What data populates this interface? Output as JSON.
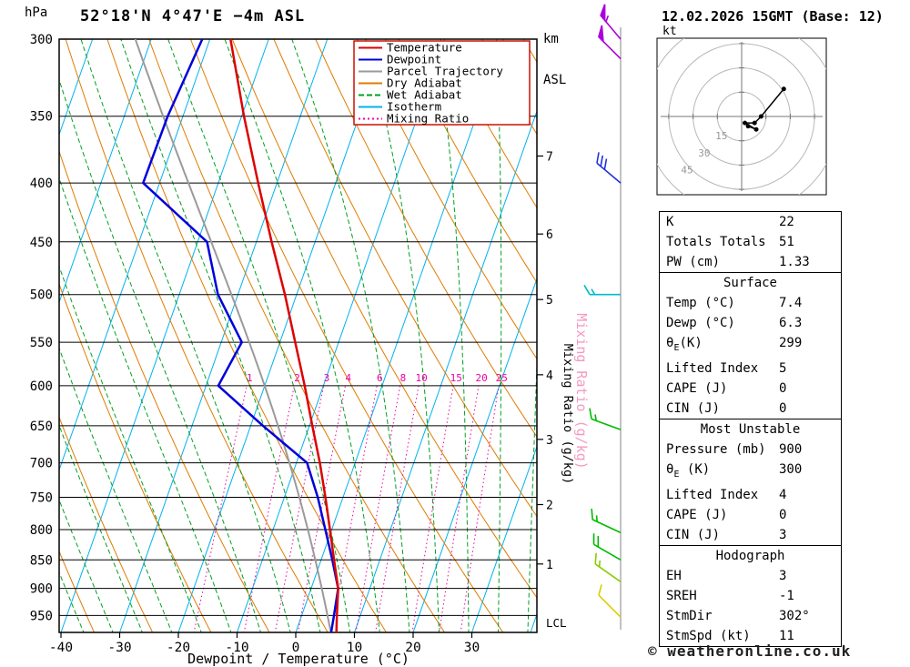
{
  "header": {
    "station": "52°18'N 4°47'E −4m ASL",
    "datetime": "12.02.2026 15GMT (Base: 12)",
    "left_unit": "hPa",
    "right_unit_line1": "km",
    "right_unit_line2": "ASL"
  },
  "axes": {
    "xlabel": "Dewpoint / Temperature (°C)",
    "pressure_ticks": [
      300,
      350,
      400,
      450,
      500,
      550,
      600,
      650,
      700,
      750,
      800,
      850,
      900,
      950
    ],
    "temp_ticks": [
      -40,
      -30,
      -20,
      -10,
      0,
      10,
      20,
      30
    ],
    "km_ticks": [
      1,
      2,
      3,
      4,
      5,
      6,
      7
    ],
    "mixing_ratio_label": "Mixing Ratio (g/kg)",
    "lcl_label": "LCL"
  },
  "legend": {
    "border_color": "#cc1100",
    "items": [
      {
        "label": "Temperature",
        "color": "#dd0000",
        "style": "solid"
      },
      {
        "label": "Dewpoint",
        "color": "#0000dd",
        "style": "solid"
      },
      {
        "label": "Parcel Trajectory",
        "color": "#9a9a9a",
        "style": "solid"
      },
      {
        "label": "Dry Adiabat",
        "color": "#e07b00",
        "style": "solid"
      },
      {
        "label": "Wet Adiabat",
        "color": "#00a020",
        "style": "dashed"
      },
      {
        "label": "Isotherm",
        "color": "#00b2ee",
        "style": "solid"
      },
      {
        "label": "Mixing Ratio",
        "color": "#ee00a8",
        "style": "dotted"
      }
    ]
  },
  "hodograph_panel": {
    "unit": "kt",
    "rings": [
      15,
      30,
      45
    ]
  },
  "chart_data": {
    "type": "skewt-log-p",
    "pressure_range_hpa": [
      300,
      984
    ],
    "temp_axis_range_c": [
      -40,
      40
    ],
    "colors": {
      "temperature": "#dd0000",
      "dewpoint": "#0000dd",
      "parcel": "#9a9a9a",
      "dry_adiabat": "#e07b00",
      "wet_adiabat": "#00a020",
      "isotherm": "#00b2ee",
      "mixing_ratio": "#ee00a8"
    },
    "pressure_hpa": [
      1000,
      950,
      900,
      850,
      800,
      750,
      700,
      650,
      600,
      550,
      500,
      450,
      400,
      350,
      300
    ],
    "temperature_c": [
      7.4,
      6.0,
      4.6,
      2.2,
      -0.3,
      -3.0,
      -6.0,
      -9.5,
      -13.2,
      -17.4,
      -22.0,
      -27.4,
      -33.2,
      -39.6,
      -46.5
    ],
    "dewpoint_c": [
      6.3,
      5.5,
      4.6,
      1.9,
      -1.1,
      -4.3,
      -8.2,
      -17.9,
      -27.9,
      -26.5,
      -33.4,
      -38.4,
      -52.8,
      -52.6,
      -51.3
    ],
    "parcel_start": {
      "pressure": 1000,
      "temperature": 7.4,
      "dewpoint": 6.3
    },
    "mixing_ratio_lines": [
      1,
      2,
      3,
      4,
      6,
      8,
      10,
      15,
      20,
      25
    ],
    "wind_barbs": [
      {
        "p": 300,
        "spd": 55,
        "dir": 320,
        "color": "#aa00dd"
      },
      {
        "p": 312,
        "spd": 50,
        "dir": 315,
        "color": "#aa00dd"
      },
      {
        "p": 400,
        "spd": 30,
        "dir": 310,
        "color": "#2233dd"
      },
      {
        "p": 500,
        "spd": 15,
        "dir": 270,
        "color": "#00bbcc"
      },
      {
        "p": 655,
        "spd": 15,
        "dir": 290,
        "color": "#00bb00"
      },
      {
        "p": 805,
        "spd": 15,
        "dir": 295,
        "color": "#00bb00"
      },
      {
        "p": 850,
        "spd": 20,
        "dir": 300,
        "color": "#00bb00"
      },
      {
        "p": 888,
        "spd": 15,
        "dir": 305,
        "color": "#88cc00"
      },
      {
        "p": 953,
        "spd": 10,
        "dir": 315,
        "color": "#ddcc00"
      }
    ],
    "hodograph_trace_kt": [
      [
        26,
        17
      ],
      [
        12,
        0
      ],
      [
        8,
        -4
      ],
      [
        2,
        -4
      ],
      [
        9,
        -8
      ],
      [
        4,
        -6
      ]
    ]
  },
  "stats_boxes": [
    {
      "header": null,
      "rows": [
        [
          "K",
          "22"
        ],
        [
          "Totals Totals",
          "51"
        ],
        [
          "PW (cm)",
          "1.33"
        ]
      ]
    },
    {
      "header": "Surface",
      "rows": [
        [
          "Temp (°C)",
          "7.4"
        ],
        [
          "Dewp (°C)",
          "6.3"
        ],
        [
          "θ_E(K)",
          "299"
        ],
        [
          "Lifted Index",
          "5"
        ],
        [
          "CAPE (J)",
          "0"
        ],
        [
          "CIN (J)",
          "0"
        ]
      ]
    },
    {
      "header": "Most Unstable",
      "rows": [
        [
          "Pressure (mb)",
          "900"
        ],
        [
          "θ_E (K)",
          "300"
        ],
        [
          "Lifted Index",
          "4"
        ],
        [
          "CAPE (J)",
          "0"
        ],
        [
          "CIN (J)",
          "3"
        ]
      ]
    },
    {
      "header": "Hodograph",
      "rows": [
        [
          "EH",
          "3"
        ],
        [
          "SREH",
          "-1"
        ],
        [
          "StmDir",
          "302°"
        ],
        [
          "StmSpd (kt)",
          "11"
        ]
      ]
    }
  ],
  "copyright": "© weatheronline.co.uk"
}
